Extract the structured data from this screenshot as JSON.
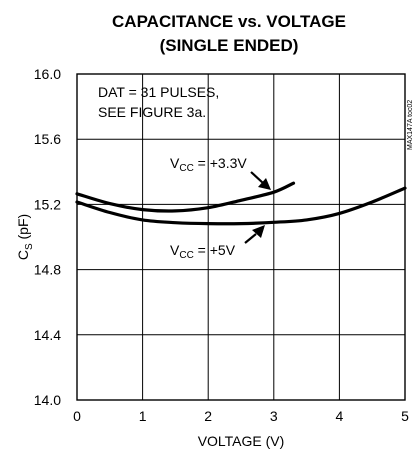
{
  "chart_data": {
    "type": "line",
    "title_line1": "CAPACITANCE vs. VOLTAGE",
    "title_line2": "(SINGLE ENDED)",
    "xlabel": "VOLTAGE (V)",
    "ylabel": {
      "main": "C",
      "sub": "S",
      "unit": " (pF)"
    },
    "xlim": [
      0,
      5
    ],
    "ylim": [
      14.0,
      16.0
    ],
    "x_ticks": [
      "0",
      "1",
      "2",
      "3",
      "4",
      "5"
    ],
    "y_ticks": [
      "14.0",
      "14.4",
      "14.8",
      "15.2",
      "15.6",
      "16.0"
    ],
    "grid": true,
    "annotation_lines": [
      "DAT = 31 PULSES,",
      "SEE FIGURE 3a."
    ],
    "side_label": "MAX147A toc02",
    "series": [
      {
        "name": "VCC = +3.3V",
        "label": {
          "main": "V",
          "sub": "CC",
          "rest": " = +3.3V"
        },
        "x": [
          0,
          0.5,
          1.0,
          1.5,
          2.0,
          2.5,
          3.0,
          3.3
        ],
        "y": [
          15.265,
          15.205,
          15.168,
          15.16,
          15.18,
          15.225,
          15.275,
          15.33
        ]
      },
      {
        "name": "VCC = +5V",
        "label": {
          "main": "V",
          "sub": "CC",
          "rest": " = +5V"
        },
        "x": [
          0,
          0.5,
          1.0,
          1.5,
          2.0,
          2.5,
          3.0,
          3.5,
          4.0,
          4.5,
          5.0
        ],
        "y": [
          15.215,
          15.15,
          15.105,
          15.088,
          15.082,
          15.082,
          15.09,
          15.105,
          15.145,
          15.215,
          15.3
        ]
      }
    ]
  }
}
